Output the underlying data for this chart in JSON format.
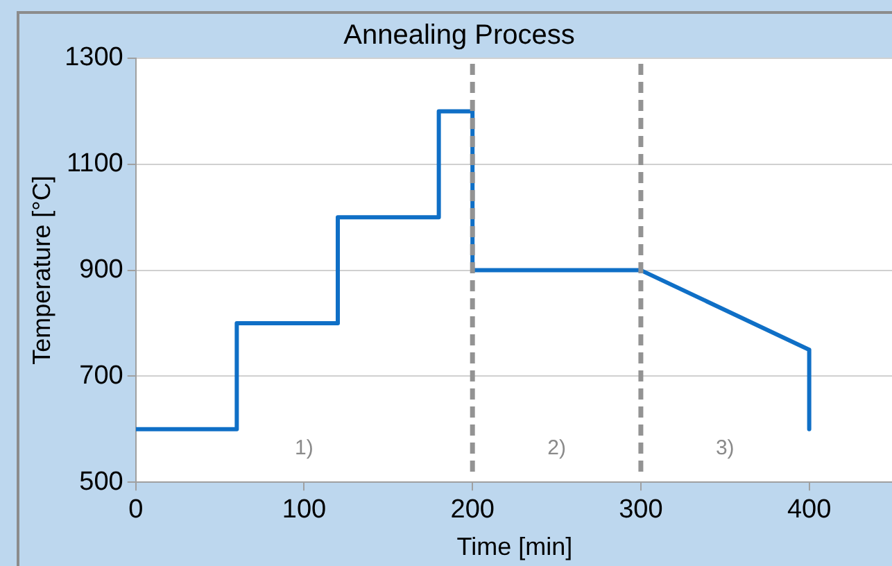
{
  "chart_data": {
    "type": "line",
    "title": "Annealing Process",
    "xlabel": "Time [min]",
    "ylabel": "Temperature [°C]",
    "x": [
      0,
      60,
      60,
      120,
      120,
      180,
      180,
      200,
      200,
      300,
      400,
      400
    ],
    "series": [
      {
        "color": "#0f6fc6",
        "values": [
          600,
          600,
          800,
          800,
          1000,
          1000,
          1200,
          1200,
          900,
          900,
          750,
          600
        ]
      }
    ],
    "xlim": [
      0,
      450
    ],
    "xticks": [
      0,
      100,
      200,
      300,
      400
    ],
    "ylim": [
      500,
      1300
    ],
    "yticks": [
      500,
      700,
      900,
      1100,
      1300
    ],
    "grid": "y",
    "legend": false,
    "marker": "none",
    "line_style": "solid",
    "ref_lines": [
      {
        "axis": "x",
        "value": 200,
        "color": "#939393",
        "line_style": "dashed"
      },
      {
        "axis": "x",
        "value": 300,
        "color": "#939393",
        "line_style": "dashed"
      }
    ],
    "annotations": [
      "1)",
      "2)",
      "3)"
    ]
  }
}
